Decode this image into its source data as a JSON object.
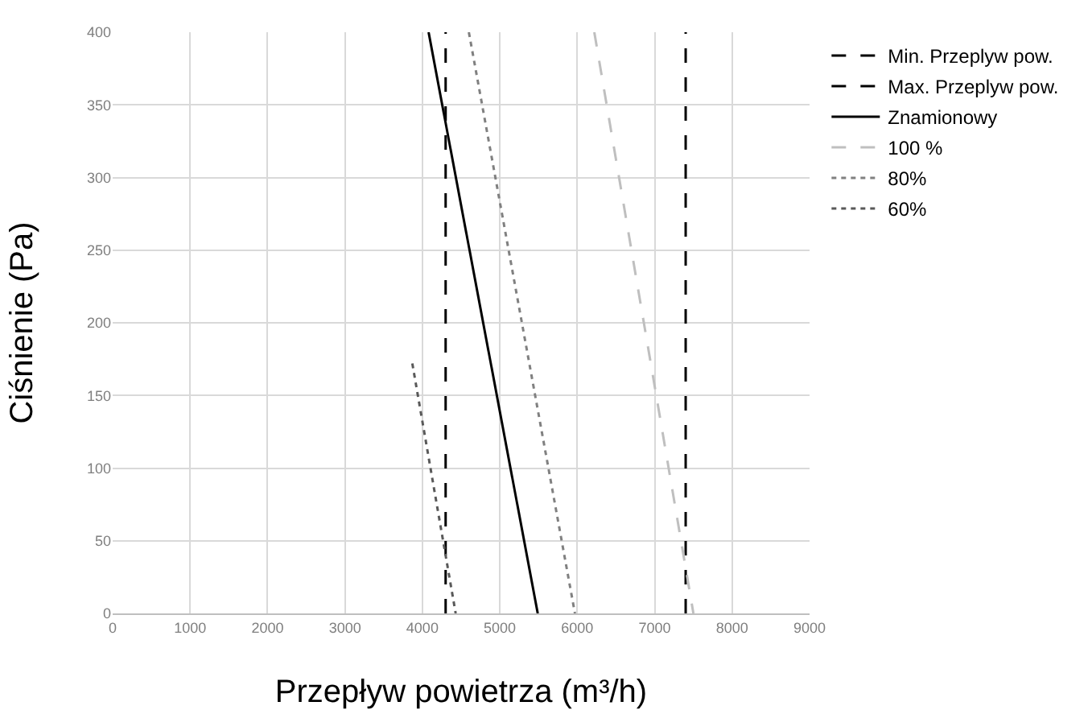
{
  "chart_data": {
    "type": "line",
    "xlabel": "Przepływ powietrza (m³/h)",
    "ylabel": "Ciśnienie (Pa)",
    "xlim": [
      0,
      9000
    ],
    "xticks": [
      0,
      1000,
      2000,
      3000,
      4000,
      5000,
      6000,
      7000,
      8000,
      9000
    ],
    "ylim": [
      0,
      400
    ],
    "yticks": [
      0,
      50,
      100,
      150,
      200,
      250,
      300,
      350,
      400
    ],
    "grid": true,
    "legend": "top right",
    "marker": "none",
    "series": [
      {
        "name": "Min. Przeplyw pow.",
        "color": "#000000",
        "line_style": "dashed",
        "x": [
          4300,
          4300
        ],
        "values": [
          0,
          400
        ]
      },
      {
        "name": "Max. Przeplyw pow.",
        "color": "#000000",
        "line_style": "dashed",
        "x": [
          7400,
          7400
        ],
        "values": [
          0,
          400
        ]
      },
      {
        "name": "Znamionowy",
        "color": "#000000",
        "line_style": "solid",
        "x": [
          4080,
          5490
        ],
        "values": [
          400,
          0
        ]
      },
      {
        "name": "100 %",
        "color": "#bfbfbf",
        "line_style": "dashed",
        "x": [
          6220,
          7500
        ],
        "values": [
          400,
          0
        ]
      },
      {
        "name": "80%",
        "color": "#808080",
        "line_style": "dotted",
        "x": [
          4600,
          5970
        ],
        "values": [
          400,
          0
        ]
      },
      {
        "name": "60%",
        "color": "#595959",
        "line_style": "dotted",
        "x": [
          3870,
          4430
        ],
        "values": [
          172,
          0
        ]
      }
    ]
  }
}
